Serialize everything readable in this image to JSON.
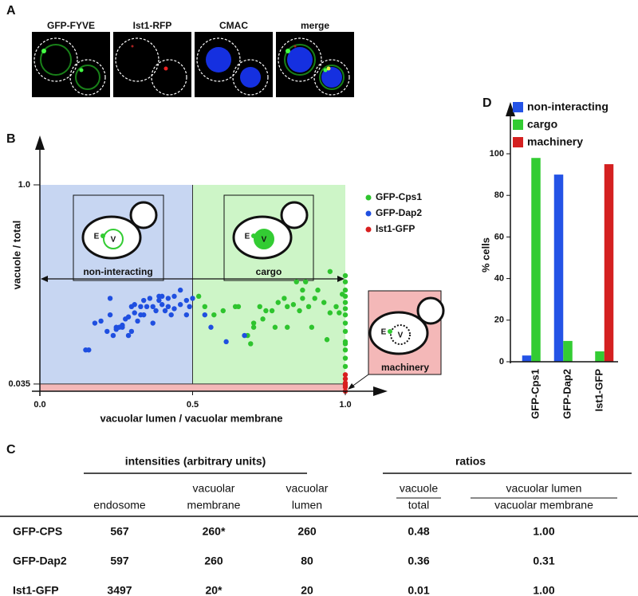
{
  "panel_labels": [
    "A",
    "B",
    "C",
    "D"
  ],
  "panel_a": {
    "channels": [
      "GFP-FYVE",
      "Ist1-RFP",
      "CMAC",
      "merge"
    ]
  },
  "chart_data": [
    {
      "type": "scatter",
      "x_label": "vacuolar lumen / vacuolar membrane",
      "y_label": "vacuole / total",
      "xlim": [
        0,
        1
      ],
      "ylim": [
        0,
        1
      ],
      "xticks": [
        {
          "value": 0,
          "label": "0.0"
        },
        {
          "value": 0.5,
          "label": "0.5"
        },
        {
          "value": 1,
          "label": "1.0"
        }
      ],
      "yticks": [
        {
          "value": 1,
          "label": "1.0"
        },
        0.035
      ],
      "annotations": [
        "non-interacting",
        "cargo",
        "machinery",
        "E",
        "V"
      ],
      "series": [
        {
          "name": "GFP-Cps1",
          "color": "#2ec42e",
          "x": [
            0.52,
            0.54,
            0.57,
            0.6,
            0.64,
            0.65,
            0.68,
            0.69,
            0.7,
            0.7,
            0.72,
            0.73,
            0.74,
            0.76,
            0.77,
            0.78,
            0.8,
            0.81,
            0.81,
            0.83,
            0.84,
            0.85,
            0.86,
            0.86,
            0.87,
            0.88,
            0.89,
            0.9,
            0.91,
            0.93,
            0.94,
            0.95,
            0.95,
            0.97,
            0.98,
            0.99,
            1,
            1,
            1,
            1,
            1,
            1,
            1,
            1,
            1,
            1,
            1,
            1,
            1,
            1
          ],
          "y": [
            0.46,
            0.41,
            0.37,
            0.39,
            0.41,
            0.41,
            0.27,
            0.23,
            0.31,
            0.33,
            0.41,
            0.35,
            0.39,
            0.39,
            0.31,
            0.43,
            0.45,
            0.41,
            0.31,
            0.42,
            0.53,
            0.39,
            0.49,
            0.45,
            0.53,
            0.41,
            0.31,
            0.45,
            0.49,
            0.43,
            0.25,
            0.58,
            0.38,
            0.41,
            0.38,
            0.47,
            0.56,
            0.53,
            0.49,
            0.46,
            0.43,
            0.4,
            0.37,
            0.33,
            0.29,
            0.24,
            0.23,
            0.2,
            0.16,
            0.12
          ]
        },
        {
          "name": "GFP-Dap2",
          "color": "#1f4fe0",
          "x": [
            0.15,
            0.16,
            0.18,
            0.2,
            0.22,
            0.23,
            0.23,
            0.24,
            0.25,
            0.25,
            0.26,
            0.27,
            0.27,
            0.28,
            0.29,
            0.29,
            0.3,
            0.3,
            0.31,
            0.31,
            0.32,
            0.33,
            0.33,
            0.34,
            0.34,
            0.35,
            0.36,
            0.37,
            0.37,
            0.38,
            0.39,
            0.39,
            0.4,
            0.4,
            0.41,
            0.42,
            0.42,
            0.43,
            0.44,
            0.44,
            0.46,
            0.46,
            0.48,
            0.48,
            0.49,
            0.5,
            0.54,
            0.56,
            0.61,
            0.67
          ],
          "y": [
            0.2,
            0.2,
            0.33,
            0.34,
            0.29,
            0.37,
            0.45,
            0.27,
            0.31,
            0.3,
            0.31,
            0.32,
            0.31,
            0.35,
            0.36,
            0.27,
            0.29,
            0.41,
            0.42,
            0.38,
            0.34,
            0.37,
            0.41,
            0.44,
            0.37,
            0.41,
            0.45,
            0.33,
            0.41,
            0.39,
            0.46,
            0.44,
            0.46,
            0.42,
            0.39,
            0.45,
            0.41,
            0.37,
            0.46,
            0.4,
            0.42,
            0.49,
            0.44,
            0.37,
            0.41,
            0.45,
            0.37,
            0.31,
            0.24,
            0.27
          ]
        },
        {
          "name": "Ist1-GFP",
          "color": "#d81f1f",
          "x": [
            1,
            1,
            1,
            1,
            1,
            1
          ],
          "y": [
            0.08,
            0.06,
            0.04,
            0.03,
            0.02,
            0.0
          ]
        }
      ]
    },
    {
      "type": "bar",
      "y_label": "% cells",
      "categories": [
        "GFP-Cps1",
        "GFP-Dap2",
        "Ist1-GFP"
      ],
      "ylim": [
        0,
        100
      ],
      "yticks": [
        0,
        20,
        40,
        60,
        80,
        100
      ],
      "series": [
        {
          "name": "non-interacting",
          "color": "#2453e6",
          "values": [
            3,
            90,
            0
          ]
        },
        {
          "name": "cargo",
          "color": "#33cc33",
          "values": [
            98,
            10,
            5
          ]
        },
        {
          "name": "machinery",
          "color": "#d42020",
          "values": [
            0,
            0,
            95
          ]
        }
      ]
    }
  ],
  "table": {
    "group_headers": [
      "intensities (arbitrary units)",
      "ratios"
    ],
    "columns": [
      [
        "endosome"
      ],
      [
        "vacuolar",
        "membrane"
      ],
      [
        "vacuolar",
        "lumen"
      ],
      [
        "vacuole",
        "total"
      ],
      [
        "vacuolar lumen",
        "vacuolar membrane"
      ]
    ],
    "rows": [
      [
        "GFP-CPS",
        "567",
        "260*",
        "260",
        "0.48",
        "1.00"
      ],
      [
        "GFP-Dap2",
        "597",
        "260",
        "80",
        "0.36",
        "0.31"
      ],
      [
        "Ist1-GFP",
        "3497",
        "20*",
        "20",
        "0.01",
        "1.00"
      ]
    ]
  }
}
